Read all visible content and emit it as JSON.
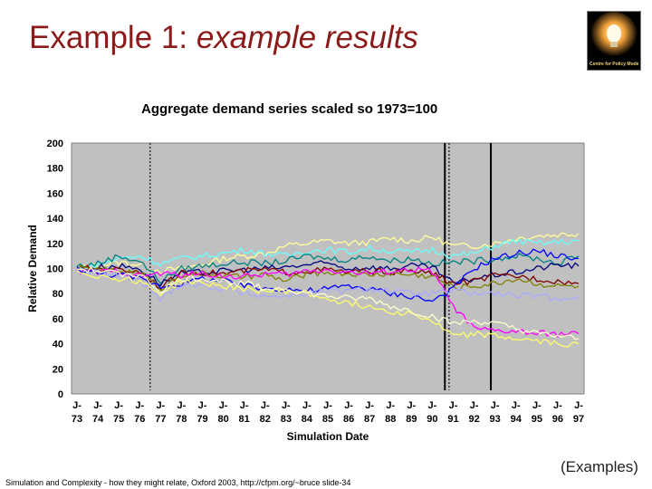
{
  "slide": {
    "title_main": "Example 1: ",
    "title_italic": "example results",
    "footer": "Simulation and Complexity - how they might relate, Oxford 2003, http://cfpm.org/~bruce slide-34",
    "examples_label": "(Examples)",
    "logo_text": "Centre for Policy Modelling",
    "logo_icon": "lightbulb-icon"
  },
  "chart_data": {
    "type": "line",
    "title": "Aggregate demand series scaled so 1973=100",
    "xlabel": "Simulation Date",
    "ylabel": "Relative Demand",
    "ylim": [
      0,
      200
    ],
    "yticks": [
      "200",
      "180",
      "160",
      "140",
      "120",
      "100",
      "80",
      "60",
      "40",
      "20",
      "0"
    ],
    "xticks": [
      [
        "J-",
        "73"
      ],
      [
        "J-",
        "74"
      ],
      [
        "J-",
        "75"
      ],
      [
        "J-",
        "76"
      ],
      [
        "J-",
        "77"
      ],
      [
        "J-",
        "78"
      ],
      [
        "J-",
        "79"
      ],
      [
        "J-",
        "80"
      ],
      [
        "J-",
        "81"
      ],
      [
        "J-",
        "82"
      ],
      [
        "J-",
        "83"
      ],
      [
        "J-",
        "84"
      ],
      [
        "J-",
        "85"
      ],
      [
        "J-",
        "86"
      ],
      [
        "J-",
        "87"
      ],
      [
        "J-",
        "88"
      ],
      [
        "J-",
        "89"
      ],
      [
        "J-",
        "90"
      ],
      [
        "J-",
        "91"
      ],
      [
        "J-",
        "92"
      ],
      [
        "J-",
        "93"
      ],
      [
        "J-",
        "94"
      ],
      [
        "J-",
        "95"
      ],
      [
        "J-",
        "96"
      ],
      [
        "J-",
        "97"
      ]
    ],
    "grid": false,
    "background": "#c0c0c0",
    "vertical_markers": [
      {
        "x": 3.5,
        "style": "dotted"
      },
      {
        "x": 17.6,
        "style": "solid"
      },
      {
        "x": 17.8,
        "style": "dotted"
      },
      {
        "x": 19.8,
        "style": "solid"
      }
    ],
    "series": [
      {
        "color": "#ffff99",
        "values": [
          100,
          102,
          105,
          103,
          98,
          100,
          103,
          108,
          110,
          112,
          118,
          120,
          122,
          120,
          121,
          124,
          122,
          125,
          118,
          118,
          120,
          124,
          126,
          127,
          128
        ]
      },
      {
        "color": "#66ffff",
        "values": [
          100,
          103,
          108,
          110,
          104,
          108,
          110,
          112,
          115,
          112,
          110,
          114,
          115,
          113,
          116,
          114,
          113,
          115,
          110,
          112,
          118,
          122,
          120,
          121,
          122
        ]
      },
      {
        "color": "#008080",
        "values": [
          102,
          104,
          110,
          106,
          90,
          100,
          102,
          104,
          105,
          104,
          106,
          110,
          108,
          107,
          110,
          106,
          108,
          104,
          105,
          106,
          108,
          110,
          108,
          104,
          110
        ]
      },
      {
        "color": "#000080",
        "values": [
          100,
          101,
          102,
          100,
          88,
          96,
          97,
          98,
          99,
          100,
          101,
          103,
          104,
          100,
          101,
          100,
          102,
          101,
          88,
          92,
          95,
          97,
          100,
          103,
          102
        ]
      },
      {
        "color": "#800000",
        "values": [
          100,
          100,
          99,
          98,
          85,
          96,
          97,
          96,
          98,
          99,
          97,
          98,
          99,
          97,
          98,
          97,
          98,
          96,
          88,
          90,
          94,
          94,
          92,
          90,
          88
        ]
      },
      {
        "color": "#808000",
        "values": [
          100,
          99,
          98,
          97,
          84,
          95,
          96,
          94,
          93,
          95,
          90,
          96,
          97,
          96,
          95,
          96,
          95,
          94,
          85,
          86,
          88,
          92,
          88,
          86,
          86
        ]
      },
      {
        "color": "#ff00ff",
        "values": [
          98,
          97,
          98,
          94,
          96,
          95,
          96,
          94,
          93,
          96,
          95,
          98,
          99,
          97,
          96,
          98,
          99,
          98,
          70,
          52,
          50,
          50,
          48,
          48,
          48
        ]
      },
      {
        "color": "#0000ff",
        "values": [
          100,
          96,
          95,
          92,
          86,
          88,
          92,
          90,
          86,
          84,
          84,
          82,
          84,
          86,
          84,
          80,
          78,
          74,
          84,
          100,
          108,
          112,
          114,
          110,
          108
        ]
      },
      {
        "color": "#aaaaff",
        "values": [
          98,
          96,
          94,
          90,
          76,
          88,
          86,
          84,
          80,
          78,
          78,
          80,
          82,
          82,
          84,
          82,
          80,
          80,
          82,
          80,
          80,
          78,
          78,
          76,
          78
        ]
      },
      {
        "color": "#ffff66",
        "values": [
          98,
          94,
          92,
          90,
          80,
          90,
          88,
          86,
          84,
          82,
          82,
          80,
          76,
          72,
          70,
          66,
          64,
          58,
          46,
          48,
          46,
          44,
          42,
          40,
          40
        ]
      },
      {
        "color": "#ffffcc",
        "values": [
          100,
          98,
          96,
          95,
          82,
          92,
          92,
          90,
          88,
          84,
          84,
          80,
          78,
          76,
          76,
          70,
          66,
          62,
          56,
          58,
          56,
          52,
          48,
          46,
          44
        ]
      }
    ]
  }
}
